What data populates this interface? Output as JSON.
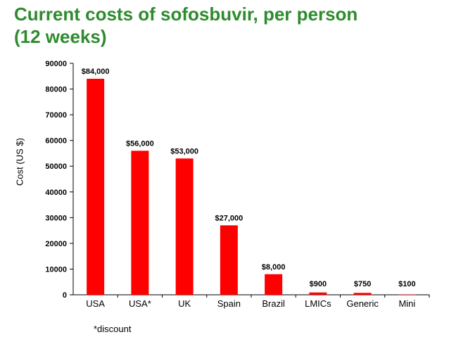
{
  "title": {
    "line1": "Current costs of sofosbuvir, per person",
    "line2": "(12 weeks)"
  },
  "note": "*discount",
  "colors": {
    "bar": "#ff0000",
    "title": "#2e8b2e"
  },
  "chart_data": {
    "type": "bar",
    "ylabel": "Cost (US $)",
    "xlabel": "",
    "ylim": [
      0,
      90000
    ],
    "yticks": [
      0,
      10000,
      20000,
      30000,
      40000,
      50000,
      60000,
      70000,
      80000,
      90000
    ],
    "grid": false,
    "categories": [
      "USA",
      "USA*",
      "UK",
      "Spain",
      "Brazil",
      "LMICs",
      "Generic",
      "Mini"
    ],
    "values": [
      84000,
      56000,
      53000,
      27000,
      8000,
      900,
      750,
      100
    ],
    "data_labels": [
      "$84,000",
      "$56,000",
      "$53,000",
      "$27,000",
      "$8,000",
      "$900",
      "$750",
      "$100"
    ]
  }
}
